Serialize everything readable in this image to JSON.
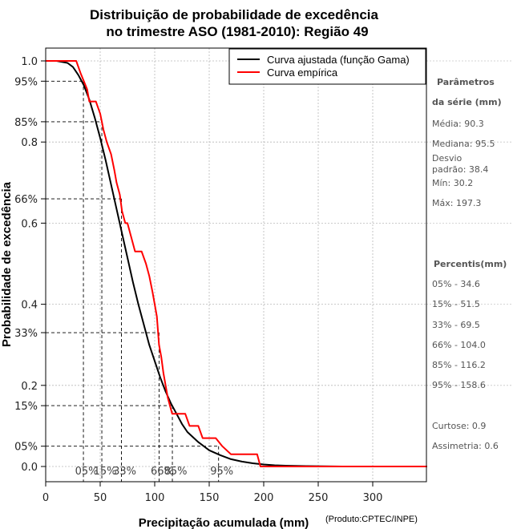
{
  "chart_data": {
    "type": "line",
    "title_line1": "Distribuição de probabilidade de excedência",
    "title_line2": "no trimestre ASO (1981-2010): Região 49",
    "xlabel": "Precipitação acumulada (mm)",
    "ylabel": "Probabilidade de excedência",
    "credit": "(Produto:CPTEC/INPE)",
    "xlim": [
      0,
      350
    ],
    "ylim": [
      -0.04,
      1.04
    ],
    "x_ticks": [
      0,
      50,
      100,
      150,
      200,
      250,
      300
    ],
    "y_ticks_left": [
      {
        "v": 1.0,
        "label": "1.0"
      },
      {
        "v": 0.95,
        "label": "95%"
      },
      {
        "v": 0.85,
        "label": "85%"
      },
      {
        "v": 0.8,
        "label": "0.8"
      },
      {
        "v": 0.66,
        "label": "66%"
      },
      {
        "v": 0.6,
        "label": "0.6"
      },
      {
        "v": 0.4,
        "label": "0.4"
      },
      {
        "v": 0.33,
        "label": "33%"
      },
      {
        "v": 0.2,
        "label": "0.2"
      },
      {
        "v": 0.15,
        "label": "15%"
      },
      {
        "v": 0.05,
        "label": "05%"
      },
      {
        "v": 0.0,
        "label": "0.0"
      }
    ],
    "grid": true,
    "legend_position": "top-right",
    "series": [
      {
        "name": "Curva ajustada (função Gama)",
        "color": "#000000",
        "x": [
          0,
          10,
          20,
          25,
          30,
          35,
          40,
          45,
          50,
          55,
          60,
          65,
          70,
          75,
          80,
          85,
          90,
          95,
          100,
          105,
          110,
          115,
          120,
          125,
          130,
          140,
          150,
          160,
          170,
          180,
          190,
          200,
          210,
          220,
          240,
          272
        ],
        "y": [
          1.0,
          1.0,
          0.995,
          0.985,
          0.965,
          0.94,
          0.905,
          0.86,
          0.81,
          0.755,
          0.695,
          0.635,
          0.575,
          0.515,
          0.455,
          0.4,
          0.35,
          0.3,
          0.26,
          0.22,
          0.185,
          0.155,
          0.13,
          0.105,
          0.085,
          0.06,
          0.04,
          0.028,
          0.018,
          0.012,
          0.008,
          0.005,
          0.003,
          0.002,
          0.001,
          0.0
        ]
      },
      {
        "name": "Curva empírica",
        "color": "#ff0000",
        "x": [
          0,
          28,
          32,
          35,
          38,
          40,
          43,
          46,
          50,
          53,
          56,
          60,
          63,
          65,
          68,
          70,
          73,
          75,
          78,
          82,
          84,
          88,
          92,
          95,
          98,
          100,
          102,
          104,
          106,
          108,
          110,
          112,
          114,
          116,
          120,
          124,
          128,
          132,
          136,
          140,
          144,
          150,
          156,
          162,
          170,
          182,
          194,
          197,
          350
        ],
        "y": [
          1.0,
          1.0,
          0.97,
          0.95,
          0.93,
          0.9,
          0.9,
          0.9,
          0.87,
          0.83,
          0.8,
          0.77,
          0.73,
          0.7,
          0.67,
          0.63,
          0.6,
          0.6,
          0.57,
          0.53,
          0.53,
          0.53,
          0.5,
          0.47,
          0.43,
          0.4,
          0.37,
          0.3,
          0.27,
          0.23,
          0.2,
          0.17,
          0.15,
          0.13,
          0.13,
          0.13,
          0.13,
          0.1,
          0.1,
          0.1,
          0.07,
          0.07,
          0.07,
          0.05,
          0.03,
          0.03,
          0.03,
          0.0,
          0.0
        ]
      }
    ],
    "percentile_markers": [
      {
        "label": "05%",
        "x": 34.6,
        "p": 0.95
      },
      {
        "label": "15%",
        "x": 51.5,
        "p": 0.85
      },
      {
        "label": "33%",
        "x": 69.5,
        "p": 0.66
      },
      {
        "label": "66%",
        "x": 104.0,
        "p": 0.33
      },
      {
        "label": "85%",
        "x": 116.2,
        "p": 0.15
      },
      {
        "label": "95%",
        "x": 158.6,
        "p": 0.05
      }
    ]
  },
  "stats": {
    "header1": "Parâmetros",
    "header2": "da série (mm)",
    "media": "Média: 90.3",
    "mediana": "Mediana: 95.5",
    "desvio1": "Desvio",
    "desvio2": "padrão: 38.4",
    "min": "Mín: 30.2",
    "max": "Máx: 197.3",
    "percentis_header": "Percentis(mm)",
    "p05": "05% - 34.6",
    "p15": "15% - 51.5",
    "p33": "33% - 69.5",
    "p66": "66% - 104.0",
    "p85": "85% - 116.2",
    "p95": "95% - 158.6",
    "curtose": "Curtose: 0.9",
    "assimetria": "Assimetria: 0.6"
  }
}
